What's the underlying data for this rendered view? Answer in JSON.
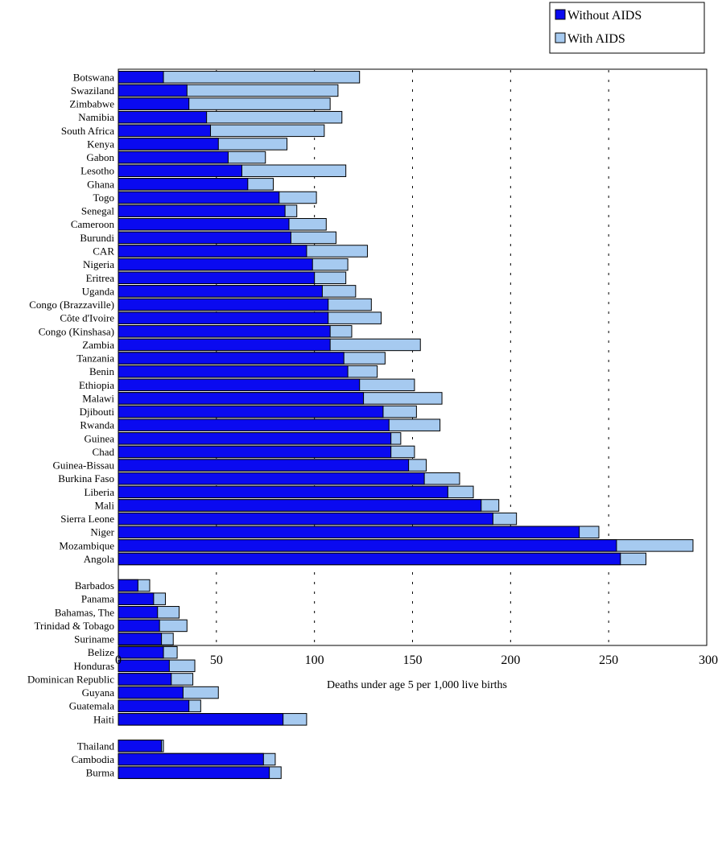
{
  "chart_data": {
    "type": "bar",
    "orientation": "horizontal",
    "stacked": true,
    "xlabel": "Deaths under age 5 per 1,000 live births",
    "ylabel": "",
    "xlim": [
      0,
      300
    ],
    "x_ticks": [
      "0",
      "50",
      "100",
      "150",
      "200",
      "250",
      "300"
    ],
    "grid": "vertical dashed lines at 50, 100, 150, 200, 250",
    "legend_position": "top-right",
    "colors": {
      "without_aids": "#0a0af0",
      "with_aids": "#a6caf0",
      "outline": "#000000"
    },
    "series": [
      {
        "name": "Without AIDS",
        "key": "without"
      },
      {
        "name": "With AIDS",
        "key": "with"
      }
    ],
    "groups": [
      {
        "categories": [
          "Botswana",
          "Swaziland",
          "Zimbabwe",
          "Namibia",
          "South Africa",
          "Kenya",
          "Gabon",
          "Lesotho",
          "Ghana",
          "Togo",
          "Senegal",
          "Cameroon",
          "Burundi",
          "CAR",
          "Nigeria",
          "Eritrea",
          "Uganda",
          "Congo (Brazzaville)",
          "Côte d'Ivoire",
          "Congo (Kinshasa)",
          "Zambia",
          "Tanzania",
          "Benin",
          "Ethiopia",
          "Malawi",
          "Djibouti",
          "Rwanda",
          "Guinea",
          "Chad",
          "Guinea-Bissau",
          "Burkina Faso",
          "Liberia",
          "Mali",
          "Sierra Leone",
          "Niger",
          "Mozambique",
          "Angola"
        ],
        "without": [
          23,
          35,
          36,
          45,
          47,
          51,
          56,
          63,
          66,
          82,
          85,
          87,
          88,
          96,
          99,
          100,
          104,
          107,
          107,
          108,
          108,
          115,
          117,
          123,
          125,
          135,
          138,
          139,
          139,
          148,
          156,
          168,
          185,
          191,
          235,
          254,
          256
        ],
        "with": [
          123,
          112,
          108,
          114,
          105,
          86,
          75,
          116,
          79,
          101,
          91,
          106,
          111,
          127,
          117,
          116,
          121,
          129,
          134,
          119,
          154,
          136,
          132,
          151,
          165,
          152,
          164,
          144,
          151,
          157,
          174,
          181,
          194,
          203,
          245,
          293,
          269
        ]
      },
      {
        "categories": [
          "Barbados",
          "Panama",
          "Bahamas, The",
          "Trinidad & Tobago",
          "Suriname",
          "Belize",
          "Honduras",
          "Dominican Republic",
          "Guyana",
          "Guatemala",
          "Haiti"
        ],
        "without": [
          10,
          18,
          20,
          21,
          22,
          23,
          26,
          27,
          33,
          36,
          84
        ],
        "with": [
          16,
          24,
          31,
          35,
          28,
          30,
          39,
          38,
          51,
          42,
          96
        ]
      },
      {
        "categories": [
          "Thailand",
          "Cambodia",
          "Burma"
        ],
        "without": [
          22,
          74,
          77
        ],
        "with": [
          23,
          80,
          83
        ]
      }
    ]
  }
}
